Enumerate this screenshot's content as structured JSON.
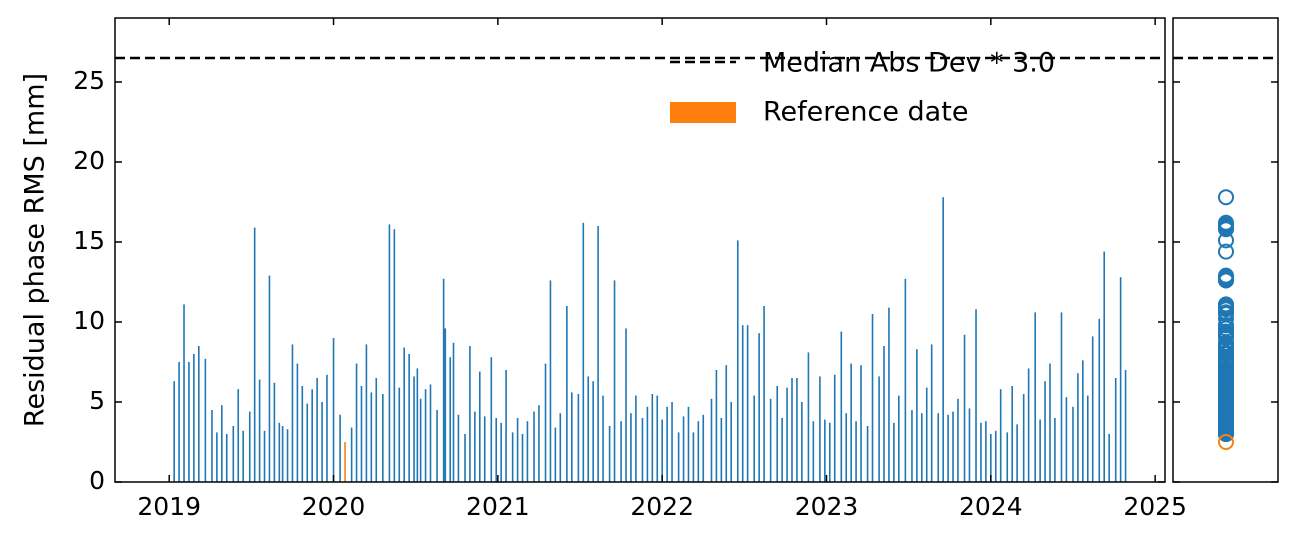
{
  "chart_data": {
    "type": "bar",
    "ylabel": "Residual phase RMS [mm]",
    "xlim": [
      2018.67,
      2025.06
    ],
    "xticks": [
      2019,
      2020,
      2021,
      2022,
      2023,
      2024,
      2025
    ],
    "ylim": [
      0,
      29
    ],
    "yticks": [
      0,
      5,
      10,
      15,
      20,
      25
    ],
    "legend": "upper right",
    "threshold": {
      "name": "Median Abs Dev * 3.0",
      "value": 26.5,
      "color": "#000000"
    },
    "series": [
      {
        "color": "#1f77b4",
        "x": [
          2019.03,
          2019.06,
          2019.09,
          2019.12,
          2019.15,
          2019.18,
          2019.22,
          2019.26,
          2019.29,
          2019.32,
          2019.35,
          2019.39,
          2019.42,
          2019.45,
          2019.49,
          2019.52,
          2019.55,
          2019.58,
          2019.61,
          2019.64,
          2019.67,
          2019.69,
          2019.72,
          2019.75,
          2019.78,
          2019.81,
          2019.84,
          2019.87,
          2019.9,
          2019.93,
          2019.96,
          2020.0,
          2020.04,
          2020.11,
          2020.14,
          2020.17,
          2020.2,
          2020.23,
          2020.26,
          2020.3,
          2020.34,
          2020.37,
          2020.4,
          2020.43,
          2020.46,
          2020.49,
          2020.51,
          2020.53,
          2020.56,
          2020.59,
          2020.63,
          2020.67,
          2020.68,
          2020.71,
          2020.73,
          2020.76,
          2020.8,
          2020.83,
          2020.86,
          2020.89,
          2020.92,
          2020.96,
          2020.99,
          2021.02,
          2021.05,
          2021.09,
          2021.12,
          2021.15,
          2021.18,
          2021.22,
          2021.25,
          2021.29,
          2021.32,
          2021.35,
          2021.38,
          2021.42,
          2021.45,
          2021.49,
          2021.52,
          2021.55,
          2021.58,
          2021.61,
          2021.64,
          2021.68,
          2021.71,
          2021.75,
          2021.78,
          2021.81,
          2021.84,
          2021.88,
          2021.91,
          2021.94,
          2021.97,
          2022.0,
          2022.03,
          2022.06,
          2022.1,
          2022.13,
          2022.16,
          2022.19,
          2022.22,
          2022.25,
          2022.3,
          2022.33,
          2022.36,
          2022.39,
          2022.42,
          2022.46,
          2022.49,
          2022.52,
          2022.56,
          2022.59,
          2022.62,
          2022.66,
          2022.7,
          2022.73,
          2022.76,
          2022.79,
          2022.82,
          2022.85,
          2022.89,
          2022.92,
          2022.96,
          2022.99,
          2023.02,
          2023.05,
          2023.09,
          2023.12,
          2023.15,
          2023.18,
          2023.21,
          2023.25,
          2023.28,
          2023.32,
          2023.35,
          2023.38,
          2023.41,
          2023.44,
          2023.48,
          2023.52,
          2023.55,
          2023.58,
          2023.61,
          2023.64,
          2023.68,
          2023.71,
          2023.74,
          2023.77,
          2023.8,
          2023.84,
          2023.87,
          2023.91,
          2023.94,
          2023.97,
          2024.0,
          2024.03,
          2024.06,
          2024.1,
          2024.13,
          2024.16,
          2024.2,
          2024.23,
          2024.27,
          2024.3,
          2024.33,
          2024.36,
          2024.39,
          2024.43,
          2024.46,
          2024.5,
          2024.53,
          2024.56,
          2024.59,
          2024.62,
          2024.66,
          2024.69,
          2024.72,
          2024.76,
          2024.79,
          2024.82
        ],
        "values": [
          6.3,
          7.5,
          11.1,
          7.5,
          8.0,
          8.5,
          7.7,
          4.5,
          3.1,
          4.8,
          3.0,
          3.5,
          5.8,
          3.2,
          4.4,
          15.9,
          6.4,
          3.2,
          12.9,
          6.2,
          3.7,
          3.5,
          3.3,
          8.6,
          7.4,
          6.0,
          4.9,
          5.8,
          6.5,
          5.0,
          6.7,
          9.0,
          4.2,
          3.4,
          7.4,
          6.0,
          8.6,
          5.6,
          6.5,
          5.5,
          16.1,
          15.8,
          5.9,
          8.4,
          8.0,
          6.6,
          7.1,
          5.2,
          5.8,
          6.1,
          4.5,
          12.7,
          9.6,
          7.8,
          8.7,
          4.2,
          3.0,
          8.5,
          4.4,
          6.9,
          4.1,
          7.8,
          4.0,
          3.7,
          7.0,
          3.1,
          4.0,
          3.0,
          3.8,
          4.4,
          4.8,
          7.4,
          12.6,
          3.4,
          4.3,
          11.0,
          5.6,
          5.5,
          16.2,
          6.6,
          6.3,
          16.0,
          5.4,
          3.5,
          12.6,
          3.8,
          9.6,
          4.3,
          5.4,
          4.0,
          4.7,
          5.5,
          5.4,
          3.9,
          4.7,
          5.0,
          3.1,
          4.1,
          4.7,
          3.1,
          3.8,
          4.2,
          5.2,
          7.0,
          4.0,
          7.3,
          5.0,
          15.1,
          9.8,
          9.8,
          5.4,
          9.3,
          11.0,
          5.2,
          6.0,
          4.0,
          5.9,
          6.5,
          6.5,
          5.0,
          8.1,
          3.8,
          6.6,
          3.9,
          3.7,
          6.7,
          9.4,
          4.3,
          7.4,
          3.8,
          7.3,
          3.5,
          10.5,
          6.6,
          8.5,
          10.9,
          3.7,
          5.4,
          12.7,
          4.5,
          8.3,
          4.3,
          5.9,
          8.6,
          4.3,
          17.8,
          4.2,
          4.4,
          5.2,
          9.2,
          4.6,
          10.8,
          3.7,
          3.8,
          3.0,
          3.2,
          5.8,
          3.1,
          6.0,
          3.6,
          5.5,
          7.1,
          10.6,
          3.9,
          6.3,
          7.4,
          4.0,
          10.6,
          5.3,
          4.7,
          6.8,
          7.6,
          5.4,
          9.1,
          10.2,
          14.4,
          3.0,
          6.5,
          12.8,
          7.0
        ]
      },
      {
        "name": "Reference date",
        "color": "#ff7f0e",
        "x": [
          2020.07
        ],
        "values": [
          2.5
        ]
      }
    ]
  }
}
